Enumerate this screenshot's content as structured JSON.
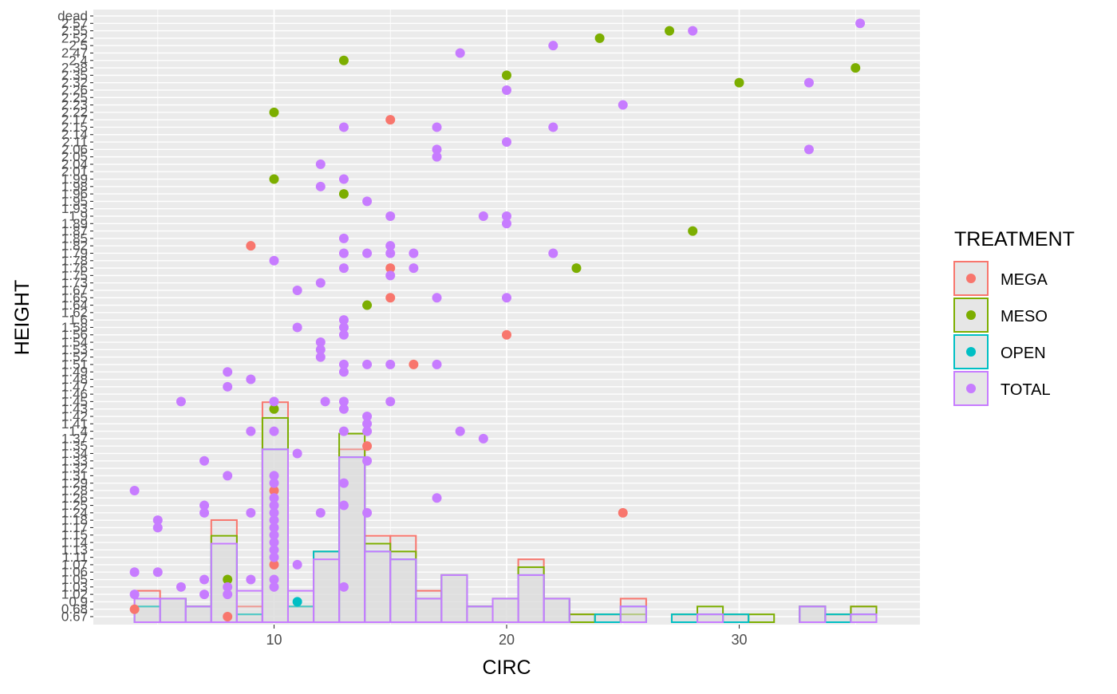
{
  "chart_data": {
    "type": "scatter",
    "xlabel": "CIRC",
    "ylabel": "HEIGHT",
    "x_ticks": [
      10,
      20,
      30
    ],
    "xlim": [
      3,
      37
    ],
    "y_axis_type": "categorical",
    "y_categories": [
      "0.67",
      "0.68",
      "0.9",
      "1.02",
      "1.03",
      "1.05",
      "1.06",
      "1.07",
      "1.11",
      "1.13",
      "1.14",
      "1.15",
      "1.17",
      "1.18",
      "1.24",
      "1.25",
      "1.26",
      "1.28",
      "1.29",
      "1.31",
      "1.32",
      "1.33",
      "1.34",
      "1.35",
      "1.37",
      "1.4",
      "1.41",
      "1.42",
      "1.43",
      "1.45",
      "1.46",
      "1.47",
      "1.48",
      "1.49",
      "1.51",
      "1.52",
      "1.53",
      "1.54",
      "1.56",
      "1.58",
      "1.6",
      "1.62",
      "1.64",
      "1.65",
      "1.67",
      "1.73",
      "1.75",
      "1.76",
      "1.78",
      "1.79",
      "1.82",
      "1.85",
      "1.87",
      "1.89",
      "1.9",
      "1.93",
      "1.95",
      "1.96",
      "1.98",
      "1.99",
      "2.01",
      "2.04",
      "2.05",
      "2.06",
      "2.11",
      "2.14",
      "2.15",
      "2.17",
      "2.22",
      "2.23",
      "2.25",
      "2.26",
      "2.32",
      "2.35",
      "2.38",
      "2.4",
      "2.47",
      "2.5",
      "2.52",
      "2.55",
      "2.57",
      "dead"
    ],
    "grid": true,
    "legend_title": "TREATMENT",
    "legend_position": "right",
    "legend": [
      {
        "name": "MEGA",
        "color": "#F8766D"
      },
      {
        "name": "MESO",
        "color": "#7CAE00"
      },
      {
        "name": "OPEN",
        "color": "#00BFC4"
      },
      {
        "name": "TOTAL",
        "color": "#C77CFF"
      }
    ],
    "points": [
      {
        "g": "MEGA",
        "x": 4,
        "y": "0.68"
      },
      {
        "g": "MEGA",
        "x": 8,
        "y": "0.67"
      },
      {
        "g": "MEGA",
        "x": 9,
        "y": "1.82"
      },
      {
        "g": "MEGA",
        "x": 10,
        "y": "1.28"
      },
      {
        "g": "MEGA",
        "x": 10,
        "y": "1.07"
      },
      {
        "g": "MEGA",
        "x": 14,
        "y": "1.35"
      },
      {
        "g": "MEGA",
        "x": 15,
        "y": "2.17"
      },
      {
        "g": "MEGA",
        "x": 15,
        "y": "1.76"
      },
      {
        "g": "MEGA",
        "x": 15,
        "y": "1.65"
      },
      {
        "g": "MEGA",
        "x": 16,
        "y": "1.51"
      },
      {
        "g": "MEGA",
        "x": 20,
        "y": "1.56"
      },
      {
        "g": "MEGA",
        "x": 25,
        "y": "1.24"
      },
      {
        "g": "MESO",
        "x": 8,
        "y": "1.05"
      },
      {
        "g": "MESO",
        "x": 10,
        "y": "2.22"
      },
      {
        "g": "MESO",
        "x": 10,
        "y": "1.99"
      },
      {
        "g": "MESO",
        "x": 10,
        "y": "1.43"
      },
      {
        "g": "MESO",
        "x": 13,
        "y": "2.4"
      },
      {
        "g": "MESO",
        "x": 13,
        "y": "1.96"
      },
      {
        "g": "MESO",
        "x": 14,
        "y": "1.64"
      },
      {
        "g": "MESO",
        "x": 20,
        "y": "2.35"
      },
      {
        "g": "MESO",
        "x": 23,
        "y": "1.76"
      },
      {
        "g": "MESO",
        "x": 24,
        "y": "2.52"
      },
      {
        "g": "MESO",
        "x": 27,
        "y": "2.55"
      },
      {
        "g": "MESO",
        "x": 28,
        "y": "1.87"
      },
      {
        "g": "MESO",
        "x": 30,
        "y": "2.32"
      },
      {
        "g": "MESO",
        "x": 35,
        "y": "2.38"
      },
      {
        "g": "OPEN",
        "x": 11,
        "y": "0.9"
      },
      {
        "g": "TOTAL",
        "x": 4,
        "y": "1.28"
      },
      {
        "g": "TOTAL",
        "x": 4,
        "y": "1.06"
      },
      {
        "g": "TOTAL",
        "x": 4,
        "y": "1.02"
      },
      {
        "g": "TOTAL",
        "x": 5,
        "y": "1.18"
      },
      {
        "g": "TOTAL",
        "x": 5,
        "y": "1.17"
      },
      {
        "g": "TOTAL",
        "x": 5,
        "y": "1.06"
      },
      {
        "g": "TOTAL",
        "x": 6,
        "y": "1.45"
      },
      {
        "g": "TOTAL",
        "x": 6,
        "y": "1.03"
      },
      {
        "g": "TOTAL",
        "x": 7,
        "y": "1.33"
      },
      {
        "g": "TOTAL",
        "x": 7,
        "y": "1.24"
      },
      {
        "g": "TOTAL",
        "x": 7,
        "y": "1.25"
      },
      {
        "g": "TOTAL",
        "x": 7,
        "y": "1.05"
      },
      {
        "g": "TOTAL",
        "x": 7,
        "y": "1.02"
      },
      {
        "g": "TOTAL",
        "x": 8,
        "y": "1.49"
      },
      {
        "g": "TOTAL",
        "x": 8,
        "y": "1.47"
      },
      {
        "g": "TOTAL",
        "x": 8,
        "y": "1.31"
      },
      {
        "g": "TOTAL",
        "x": 8,
        "y": "1.03"
      },
      {
        "g": "TOTAL",
        "x": 8,
        "y": "1.02"
      },
      {
        "g": "TOTAL",
        "x": 9,
        "y": "1.48"
      },
      {
        "g": "TOTAL",
        "x": 9,
        "y": "1.4"
      },
      {
        "g": "TOTAL",
        "x": 9,
        "y": "1.24"
      },
      {
        "g": "TOTAL",
        "x": 9,
        "y": "1.05"
      },
      {
        "g": "TOTAL",
        "x": 10,
        "y": "1.78"
      },
      {
        "g": "TOTAL",
        "x": 10,
        "y": "1.45"
      },
      {
        "g": "TOTAL",
        "x": 10,
        "y": "1.4"
      },
      {
        "g": "TOTAL",
        "x": 10,
        "y": "1.31"
      },
      {
        "g": "TOTAL",
        "x": 10,
        "y": "1.29"
      },
      {
        "g": "TOTAL",
        "x": 10,
        "y": "1.26"
      },
      {
        "g": "TOTAL",
        "x": 10,
        "y": "1.25"
      },
      {
        "g": "TOTAL",
        "x": 10,
        "y": "1.24"
      },
      {
        "g": "TOTAL",
        "x": 10,
        "y": "1.18"
      },
      {
        "g": "TOTAL",
        "x": 10,
        "y": "1.17"
      },
      {
        "g": "TOTAL",
        "x": 10,
        "y": "1.15"
      },
      {
        "g": "TOTAL",
        "x": 10,
        "y": "1.14"
      },
      {
        "g": "TOTAL",
        "x": 10,
        "y": "1.13"
      },
      {
        "g": "TOTAL",
        "x": 10,
        "y": "1.11"
      },
      {
        "g": "TOTAL",
        "x": 10,
        "y": "1.05"
      },
      {
        "g": "TOTAL",
        "x": 10,
        "y": "1.03"
      },
      {
        "g": "TOTAL",
        "x": 11,
        "y": "1.67"
      },
      {
        "g": "TOTAL",
        "x": 11,
        "y": "1.58"
      },
      {
        "g": "TOTAL",
        "x": 11,
        "y": "1.34"
      },
      {
        "g": "TOTAL",
        "x": 11,
        "y": "1.07"
      },
      {
        "g": "TOTAL",
        "x": 12,
        "y": "2.04"
      },
      {
        "g": "TOTAL",
        "x": 12,
        "y": "1.98"
      },
      {
        "g": "TOTAL",
        "x": 12,
        "y": "1.73"
      },
      {
        "g": "TOTAL",
        "x": 12,
        "y": "1.54"
      },
      {
        "g": "TOTAL",
        "x": 12,
        "y": "1.53"
      },
      {
        "g": "TOTAL",
        "x": 12,
        "y": "1.52"
      },
      {
        "g": "TOTAL",
        "x": 12,
        "y": "1.24"
      },
      {
        "g": "TOTAL",
        "x": 12.2,
        "y": "1.45"
      },
      {
        "g": "TOTAL",
        "x": 13,
        "y": "2.15"
      },
      {
        "g": "TOTAL",
        "x": 13,
        "y": "1.99"
      },
      {
        "g": "TOTAL",
        "x": 13,
        "y": "1.85"
      },
      {
        "g": "TOTAL",
        "x": 13,
        "y": "1.79"
      },
      {
        "g": "TOTAL",
        "x": 13,
        "y": "1.76"
      },
      {
        "g": "TOTAL",
        "x": 13,
        "y": "1.6"
      },
      {
        "g": "TOTAL",
        "x": 13,
        "y": "1.58"
      },
      {
        "g": "TOTAL",
        "x": 13,
        "y": "1.56"
      },
      {
        "g": "TOTAL",
        "x": 13,
        "y": "1.51"
      },
      {
        "g": "TOTAL",
        "x": 13,
        "y": "1.49"
      },
      {
        "g": "TOTAL",
        "x": 13,
        "y": "1.45"
      },
      {
        "g": "TOTAL",
        "x": 13,
        "y": "1.43"
      },
      {
        "g": "TOTAL",
        "x": 13,
        "y": "1.4"
      },
      {
        "g": "TOTAL",
        "x": 13,
        "y": "1.29"
      },
      {
        "g": "TOTAL",
        "x": 13,
        "y": "1.25"
      },
      {
        "g": "TOTAL",
        "x": 13,
        "y": "1.03"
      },
      {
        "g": "TOTAL",
        "x": 14,
        "y": "1.95"
      },
      {
        "g": "TOTAL",
        "x": 14,
        "y": "1.79"
      },
      {
        "g": "TOTAL",
        "x": 14,
        "y": "1.51"
      },
      {
        "g": "TOTAL",
        "x": 14,
        "y": "1.42"
      },
      {
        "g": "TOTAL",
        "x": 14,
        "y": "1.41"
      },
      {
        "g": "TOTAL",
        "x": 14,
        "y": "1.4"
      },
      {
        "g": "TOTAL",
        "x": 14,
        "y": "1.33"
      },
      {
        "g": "TOTAL",
        "x": 14,
        "y": "1.24"
      },
      {
        "g": "TOTAL",
        "x": 15,
        "y": "1.9"
      },
      {
        "g": "TOTAL",
        "x": 15,
        "y": "1.82"
      },
      {
        "g": "TOTAL",
        "x": 15,
        "y": "1.79"
      },
      {
        "g": "TOTAL",
        "x": 15,
        "y": "1.75"
      },
      {
        "g": "TOTAL",
        "x": 15,
        "y": "1.51"
      },
      {
        "g": "TOTAL",
        "x": 15,
        "y": "1.45"
      },
      {
        "g": "TOTAL",
        "x": 16,
        "y": "1.79"
      },
      {
        "g": "TOTAL",
        "x": 16,
        "y": "1.76"
      },
      {
        "g": "TOTAL",
        "x": 17,
        "y": "2.15"
      },
      {
        "g": "TOTAL",
        "x": 17,
        "y": "2.06"
      },
      {
        "g": "TOTAL",
        "x": 17,
        "y": "2.05"
      },
      {
        "g": "TOTAL",
        "x": 17,
        "y": "1.65"
      },
      {
        "g": "TOTAL",
        "x": 17,
        "y": "1.51"
      },
      {
        "g": "TOTAL",
        "x": 17,
        "y": "1.26"
      },
      {
        "g": "TOTAL",
        "x": 18,
        "y": "2.47"
      },
      {
        "g": "TOTAL",
        "x": 18,
        "y": "1.4"
      },
      {
        "g": "TOTAL",
        "x": 19,
        "y": "1.9"
      },
      {
        "g": "TOTAL",
        "x": 19,
        "y": "1.8"
      },
      {
        "g": "TOTAL",
        "x": 19,
        "y": "1.37"
      },
      {
        "g": "TOTAL",
        "x": 20,
        "y": "2.26"
      },
      {
        "g": "TOTAL",
        "x": 20,
        "y": "2.11"
      },
      {
        "g": "TOTAL",
        "x": 20,
        "y": "1.9"
      },
      {
        "g": "TOTAL",
        "x": 20,
        "y": "1.89"
      },
      {
        "g": "TOTAL",
        "x": 20,
        "y": "1.8"
      },
      {
        "g": "TOTAL",
        "x": 20,
        "y": "1.65"
      },
      {
        "g": "TOTAL",
        "x": 22,
        "y": "2.5"
      },
      {
        "g": "TOTAL",
        "x": 22,
        "y": "2.15"
      },
      {
        "g": "TOTAL",
        "x": 22,
        "y": "1.79"
      },
      {
        "g": "TOTAL",
        "x": 25,
        "y": "2.23"
      },
      {
        "g": "TOTAL",
        "x": 25,
        "y": "2.1"
      },
      {
        "g": "TOTAL",
        "x": 28,
        "y": "2.55"
      },
      {
        "g": "TOTAL",
        "x": 33,
        "y": "2.32"
      },
      {
        "g": "TOTAL",
        "x": 33,
        "y": "2.06"
      },
      {
        "g": "TOTAL",
        "x": 35.2,
        "y": "2.57"
      }
    ],
    "histogram": {
      "bin_width": 1.1,
      "bin_starts": [
        4,
        5.1,
        6.2,
        7.3,
        8.4,
        9.5,
        10.6,
        11.7,
        12.8,
        13.9,
        15,
        16.1,
        17.2,
        18.3,
        19.4,
        20.5,
        21.6,
        22.7,
        23.8,
        24.9,
        26,
        27.1,
        28.2,
        29.3,
        30.4,
        31.5,
        32.6,
        33.7,
        34.8
      ],
      "series": [
        {
          "name": "MEGA",
          "counts": [
            4,
            3,
            2,
            13,
            2,
            28,
            2,
            9,
            22,
            11,
            11,
            4,
            6,
            2,
            3,
            8,
            3,
            1,
            1,
            3,
            0,
            1,
            1,
            1,
            0,
            0,
            2,
            1,
            2
          ]
        },
        {
          "name": "MESO",
          "counts": [
            2,
            3,
            2,
            11,
            1,
            26,
            2,
            9,
            24,
            10,
            9,
            3,
            6,
            2,
            3,
            7,
            3,
            1,
            1,
            1,
            0,
            1,
            2,
            1,
            1,
            0,
            2,
            1,
            2
          ]
        },
        {
          "name": "OPEN",
          "counts": [
            2,
            3,
            2,
            10,
            1,
            22,
            2,
            9,
            21,
            9,
            8,
            3,
            6,
            2,
            3,
            6,
            3,
            0,
            1,
            2,
            0,
            1,
            1,
            1,
            0,
            0,
            2,
            1,
            1
          ]
        },
        {
          "name": "TOTAL",
          "counts": [
            3,
            3,
            2,
            10,
            4,
            22,
            4,
            8,
            21,
            9,
            8,
            3,
            6,
            2,
            3,
            6,
            3,
            0,
            0,
            2,
            0,
            0,
            1,
            0,
            0,
            0,
            2,
            0,
            1
          ]
        }
      ]
    }
  }
}
